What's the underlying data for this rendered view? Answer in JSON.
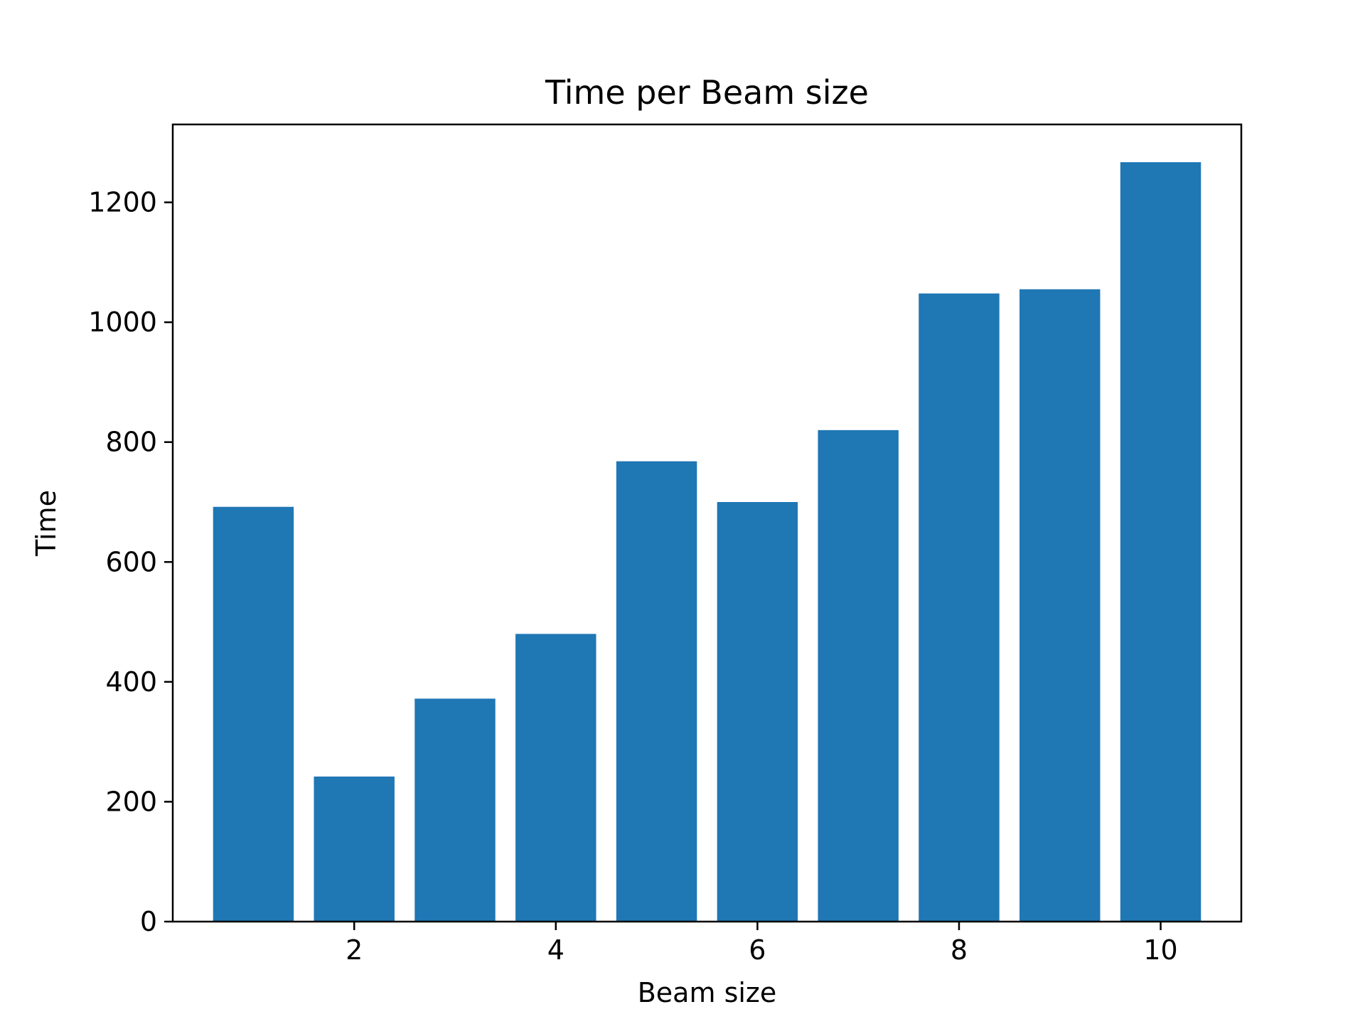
{
  "chart_data": {
    "type": "bar",
    "title": "Time per Beam size",
    "xlabel": "Beam size",
    "ylabel": "Time",
    "x": [
      1,
      2,
      3,
      4,
      5,
      6,
      7,
      8,
      9,
      10
    ],
    "values": [
      692,
      242,
      372,
      480,
      768,
      700,
      820,
      1048,
      1055,
      1267
    ],
    "xticks": [
      2,
      4,
      6,
      8,
      10
    ],
    "yticks": [
      0,
      200,
      400,
      600,
      800,
      1000,
      1200
    ],
    "xlim": [
      0.2,
      10.8
    ],
    "ylim": [
      0,
      1330
    ],
    "grid": false,
    "bar_color": "#1f77b4"
  }
}
